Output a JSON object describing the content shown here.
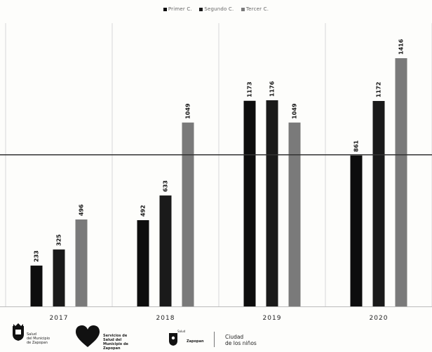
{
  "legend": {
    "items": [
      {
        "label": "Primer C.",
        "color": "#0d0d0d"
      },
      {
        "label": "Segundo C.",
        "color": "#1a1a1a"
      },
      {
        "label": "Tercer C.",
        "color": "#7a7a7a"
      }
    ]
  },
  "chart_data": {
    "type": "bar",
    "categories": [
      "2017",
      "2018",
      "2019",
      "2020"
    ],
    "series": [
      {
        "name": "Primer C.",
        "color": "#0d0d0d",
        "values": [
          233,
          492,
          1173,
          861
        ]
      },
      {
        "name": "Segundo C.",
        "color": "#1a1a1a",
        "values": [
          325,
          633,
          1176,
          1172
        ]
      },
      {
        "name": "Tercer C.",
        "color": "#7a7a7a",
        "values": [
          496,
          1049,
          1049,
          1416
        ]
      }
    ],
    "value_labels": [
      [
        "233",
        "325",
        "496"
      ],
      [
        "492",
        "633",
        "1049"
      ],
      [
        "1173",
        "1176",
        "1049"
      ],
      [
        "861",
        "1172",
        "1416"
      ]
    ],
    "title": "",
    "xlabel": "",
    "ylabel": "",
    "ylim": [
      0,
      1600
    ],
    "reference_line": 865,
    "grid": "vertical",
    "legend_position": "top"
  },
  "footer": {
    "logo1": [
      "Salud",
      "del Municipio",
      "de Zapopan"
    ],
    "logo2": [
      "Servicios de",
      "Salud del",
      "Municipio de",
      "Zapopan"
    ],
    "logo3_top": "Salud",
    "logo3_main": "Zapopan",
    "city": [
      "Ciudad",
      "de los niños"
    ]
  }
}
